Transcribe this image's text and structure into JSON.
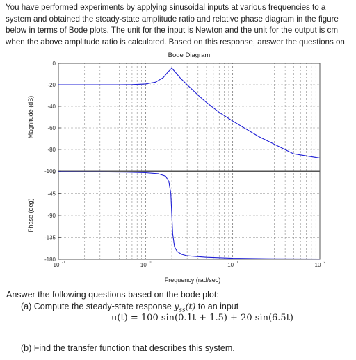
{
  "intro_text": "You have performed experiments by applying sinusoidal inputs at various frequencies to a system and obtained the steady-state amplitude ratio and relative phase diagram in the figure below in terms of Bode plots. The unit for the input is Newton and the unit for the output is cm when the above amplitude ratio is calculated. Based on this response, answer the questions on",
  "questions": {
    "heading": "Answer the following questions based on the bode plot:",
    "a_label": "(a) Compute the steady-state response",
    "a_symbol": "y",
    "a_subscript": "ss",
    "a_arg": "(t)",
    "a_tail": "to an input",
    "equation": "u(t) = 100 sin(0.1t + 1.5) + 20 sin(6.5t)",
    "b_label": "(b) Find the transfer function that describes this system."
  },
  "chart_data": [
    {
      "type": "line",
      "title": "Bode Diagram",
      "ylabel": "Magnitude (dB)",
      "xscale": "log",
      "xlim": [
        0.1,
        100
      ],
      "ylim": [
        -100,
        0
      ],
      "yticks": [
        0,
        -20,
        -40,
        -60,
        -80,
        -100
      ],
      "grid": true,
      "x": [
        0.1,
        0.2,
        0.3,
        0.5,
        0.7,
        1.0,
        1.3,
        1.6,
        1.8,
        2.0,
        2.2,
        2.5,
        3.0,
        4.0,
        5.0,
        7.0,
        10,
        20,
        50,
        100
      ],
      "values": [
        -20,
        -20,
        -20,
        -20,
        -19.9,
        -19.3,
        -17.6,
        -13.3,
        -8.3,
        -4.6,
        -8.4,
        -13.6,
        -20,
        -29.6,
        -36.4,
        -45.6,
        -53.7,
        -68.1,
        -84,
        -88
      ]
    },
    {
      "type": "line",
      "ylabel": "Phase (deg)",
      "xlabel": "Frequency (rad/sec)",
      "xscale": "log",
      "xlim": [
        0.1,
        100
      ],
      "ylim": [
        -180,
        0
      ],
      "yticks": [
        0,
        -45,
        -90,
        -135,
        -180
      ],
      "xticks": [
        "10",
        "10",
        "10",
        "10"
      ],
      "xtick_exponents": [
        "-1",
        "0",
        "1",
        "2"
      ],
      "grid": true,
      "x": [
        0.1,
        0.3,
        0.6,
        1.0,
        1.4,
        1.7,
        1.85,
        1.95,
        2.0,
        2.05,
        2.15,
        2.3,
        2.6,
        3.0,
        5.0,
        10,
        30,
        100
      ],
      "values": [
        -0.1,
        -0.4,
        -1.0,
        -2.2,
        -4.2,
        -9,
        -20,
        -45,
        -90,
        -128,
        -155,
        -164,
        -170,
        -173,
        -176,
        -178,
        -179,
        -179.5
      ]
    }
  ]
}
